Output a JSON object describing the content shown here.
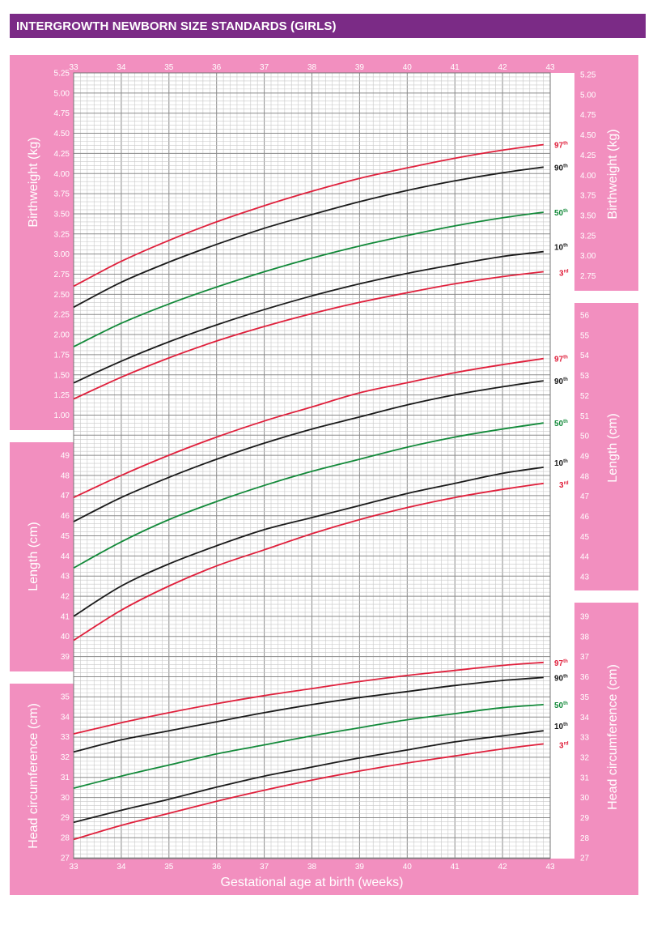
{
  "title": "INTERGROWTH NEWBORN SIZE STANDARDS (GIRLS)",
  "colors": {
    "header_bg": "#7b2b86",
    "panel_pink": "#f28fbf",
    "grid": "#b3b3b3",
    "p97": "#e0203c",
    "p90": "#1a1a1a",
    "p50": "#138a3a",
    "p10": "#1a1a1a",
    "p3": "#e0203c"
  },
  "chart_data": {
    "type": "line",
    "xlabel": "Gestational age at birth (weeks)",
    "xlim": [
      33,
      43
    ],
    "x_ticks": [
      "33",
      "34",
      "35",
      "36",
      "37",
      "38",
      "39",
      "40",
      "41",
      "42",
      "43"
    ],
    "centile_labels": [
      {
        "sup": "th",
        "num": "97"
      },
      {
        "sup": "th",
        "num": "90"
      },
      {
        "sup": "th",
        "num": "50"
      },
      {
        "sup": "th",
        "num": "10"
      },
      {
        "sup": "rd",
        "num": "3"
      }
    ],
    "panels": [
      {
        "name": "birthweight",
        "ylabel": "Birthweight (kg)",
        "ticks_left": [
          "5.25",
          "5.00",
          "4.75",
          "4.50",
          "4.25",
          "4.00",
          "3.75",
          "3.50",
          "3.25",
          "3.00",
          "2.75",
          "2.50",
          "2.25",
          "2.00",
          "1.75",
          "1.50",
          "1.25",
          "1.00"
        ],
        "ticks_right": [
          "5.25",
          "5.00",
          "4.75",
          "4.50",
          "4.25",
          "4.00",
          "3.75",
          "3.50",
          "3.25",
          "3.00",
          "2.75"
        ],
        "x": [
          33,
          34,
          35,
          36,
          37,
          38,
          39,
          40,
          41,
          42,
          42.86
        ],
        "series": [
          {
            "name": "97th",
            "values": [
              2.6,
              2.91,
              3.17,
              3.4,
              3.6,
              3.78,
              3.94,
              4.07,
              4.19,
              4.29,
              4.36
            ]
          },
          {
            "name": "90th",
            "values": [
              2.34,
              2.65,
              2.9,
              3.12,
              3.32,
              3.49,
              3.65,
              3.79,
              3.91,
              4.01,
              4.08
            ]
          },
          {
            "name": "50th",
            "values": [
              1.85,
              2.14,
              2.38,
              2.59,
              2.78,
              2.95,
              3.1,
              3.23,
              3.35,
              3.45,
              3.52
            ]
          },
          {
            "name": "10th",
            "values": [
              1.4,
              1.67,
              1.91,
              2.12,
              2.31,
              2.48,
              2.63,
              2.76,
              2.87,
              2.97,
              3.03
            ]
          },
          {
            "name": "3rd",
            "values": [
              1.2,
              1.47,
              1.71,
              1.92,
              2.1,
              2.26,
              2.4,
              2.52,
              2.63,
              2.72,
              2.78
            ]
          }
        ]
      },
      {
        "name": "length",
        "ylabel": "Length (cm)",
        "ticks_left": [
          "49",
          "48",
          "47",
          "46",
          "45",
          "44",
          "43",
          "42",
          "41",
          "40",
          "39"
        ],
        "ticks_right": [
          "56",
          "55",
          "54",
          "53",
          "52",
          "51",
          "50",
          "49",
          "48",
          "47",
          "46",
          "45",
          "44",
          "43"
        ],
        "x": [
          33,
          34,
          35,
          36,
          37,
          38,
          39,
          40,
          41,
          42,
          42.86
        ],
        "series": [
          {
            "name": "97th",
            "values": [
              46.9,
              48.0,
              49.0,
              49.9,
              50.7,
              51.4,
              52.1,
              52.6,
              53.1,
              53.5,
              53.8
            ]
          },
          {
            "name": "90th",
            "values": [
              45.7,
              46.9,
              47.9,
              48.8,
              49.6,
              50.3,
              50.9,
              51.5,
              52.0,
              52.4,
              52.7
            ]
          },
          {
            "name": "50th",
            "values": [
              43.4,
              44.7,
              45.8,
              46.7,
              47.5,
              48.2,
              48.8,
              49.4,
              49.9,
              50.3,
              50.6
            ]
          },
          {
            "name": "10th",
            "values": [
              41.0,
              42.5,
              43.6,
              44.5,
              45.3,
              45.9,
              46.5,
              47.1,
              47.6,
              48.1,
              48.4
            ]
          },
          {
            "name": "3rd",
            "values": [
              39.8,
              41.3,
              42.5,
              43.5,
              44.3,
              45.1,
              45.8,
              46.4,
              46.9,
              47.3,
              47.6
            ]
          }
        ]
      },
      {
        "name": "head",
        "ylabel": "Head circumference (cm)",
        "ticks_left": [
          "35",
          "34",
          "33",
          "32",
          "31",
          "30",
          "29",
          "28",
          "27"
        ],
        "ticks_right": [
          "39",
          "38",
          "37",
          "36",
          "35",
          "34",
          "33",
          "32",
          "31",
          "30",
          "29",
          "28",
          "27"
        ],
        "x": [
          33,
          34,
          35,
          36,
          37,
          38,
          39,
          40,
          41,
          42,
          42.86
        ],
        "series": [
          {
            "name": "97th",
            "values": [
              33.15,
              33.7,
              34.2,
              34.65,
              35.05,
              35.4,
              35.75,
              36.05,
              36.3,
              36.55,
              36.7
            ]
          },
          {
            "name": "90th",
            "values": [
              32.25,
              32.85,
              33.3,
              33.75,
              34.2,
              34.6,
              34.95,
              35.25,
              35.55,
              35.8,
              35.95
            ]
          },
          {
            "name": "50th",
            "values": [
              30.45,
              31.05,
              31.6,
              32.15,
              32.6,
              33.05,
              33.45,
              33.85,
              34.15,
              34.45,
              34.6
            ]
          },
          {
            "name": "10th",
            "values": [
              28.75,
              29.35,
              29.9,
              30.5,
              31.05,
              31.5,
              31.95,
              32.35,
              32.75,
              33.05,
              33.3
            ]
          },
          {
            "name": "3rd",
            "values": [
              27.9,
              28.6,
              29.2,
              29.8,
              30.35,
              30.85,
              31.3,
              31.7,
              32.05,
              32.4,
              32.65
            ]
          }
        ]
      }
    ]
  }
}
